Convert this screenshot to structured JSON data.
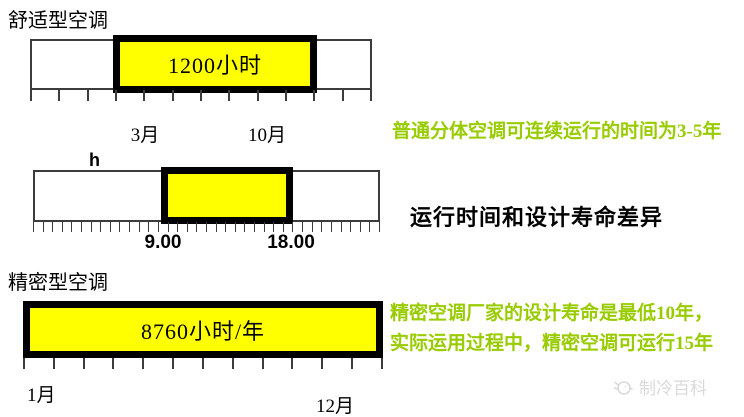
{
  "colors": {
    "bar_fill": "#ffff00",
    "bar_border": "#000000",
    "ruler_line": "#3c3c3c",
    "annotation_green": "#99cc00",
    "text_black": "#000000",
    "watermark_gray": "#d9d9d9"
  },
  "comfort_section": {
    "title": "舒适型空调",
    "bar_label": "1200小时",
    "start_label": "3月",
    "end_label": "10月",
    "tick_count": 13
  },
  "daily_runtime_section": {
    "unit_label": "h",
    "start_label": "9.00",
    "end_label": "18.00",
    "tick_count": 37
  },
  "precision_section": {
    "title": "精密型空调",
    "bar_label": "8760小时/年",
    "start_label": "1月",
    "end_label": "12月",
    "tick_count": 13
  },
  "annotations": {
    "comfort_note": "普通分体空调可连续运行的时间为3-5年",
    "center_title": "运行时间和设计寿命差异",
    "precision_note_line1": "精密空调厂家的设计寿命是最低10年，",
    "precision_note_line2": "实际运用过程中，精密空调可运行15年"
  },
  "watermark": {
    "label": "制冷百科"
  }
}
